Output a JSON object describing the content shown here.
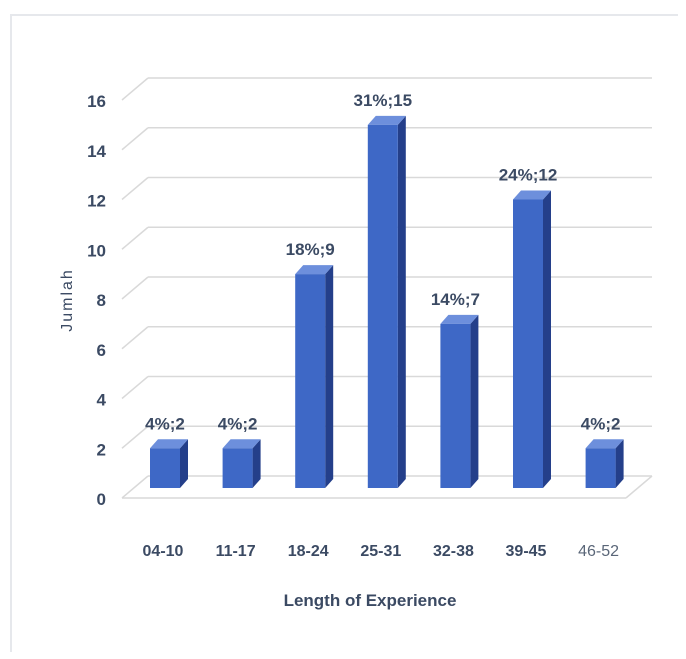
{
  "chart_data": {
    "type": "bar",
    "categories": [
      "04-10",
      "11-17",
      "18-24",
      "25-31",
      "32-38",
      "39-45",
      "46-52"
    ],
    "values": [
      2,
      2,
      9,
      15,
      7,
      12,
      2
    ],
    "data_labels": [
      "4%;2",
      "4%;2",
      "18%;9",
      "31%;15",
      "14%;7",
      "24%;12",
      "4%;2"
    ],
    "xlabel": "Length of Experience",
    "ylabel": "Jumlah",
    "ylim": [
      0,
      16
    ],
    "yticks": [
      0,
      2,
      4,
      6,
      8,
      10,
      12,
      14,
      16
    ],
    "grid": true,
    "colors": {
      "bar_front": "#3e68c6",
      "bar_side": "#243f8a",
      "bar_top": "#6d8fdc",
      "grid": "#d9d9d9",
      "text": "#3b4a63"
    }
  }
}
